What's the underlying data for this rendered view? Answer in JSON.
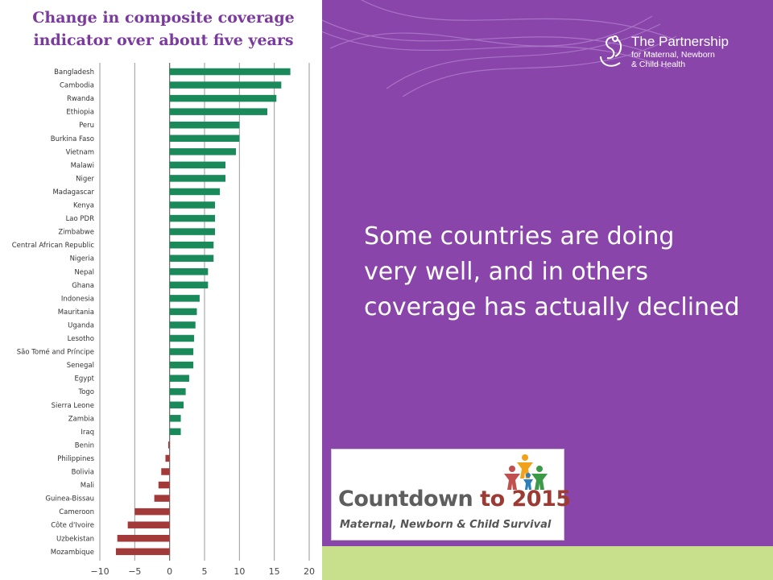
{
  "title": {
    "line1": "Change in composite coverage",
    "line2": "indicator over about five years"
  },
  "colors": {
    "positive": "#1a8a5a",
    "negative": "#a33a3a",
    "panel": "#8a45ab",
    "strip": "#c8df8b",
    "title": "#7b3a9e"
  },
  "body_text": {
    "line1": "Some countries are doing",
    "line2": "very well, and in others",
    "line3": "coverage has actually declined"
  },
  "partnership_logo": {
    "line1": "The Partnership",
    "line2": "for Maternal, Newborn",
    "line3": "& Child Health",
    "icon": "partnership-swirl-icon"
  },
  "countdown_logo": {
    "main_prefix": "Countdown ",
    "main_suffix": "to 2015",
    "subtitle": "Maternal, Newborn & Child Survival",
    "icon": "people-figures-icon"
  },
  "chart_data": {
    "type": "bar",
    "orientation": "horizontal",
    "categories": [
      "Bangladesh",
      "Cambodia",
      "Rwanda",
      "Ethiopia",
      "Peru",
      "Burkina Faso",
      "Vietnam",
      "Malawi",
      "Niger",
      "Madagascar",
      "Kenya",
      "Lao PDR",
      "Zimbabwe",
      "Central African Republic",
      "Nigeria",
      "Nepal",
      "Ghana",
      "Indonesia",
      "Mauritania",
      "Uganda",
      "Lesotho",
      "São Tomé and Príncipe",
      "Senegal",
      "Egypt",
      "Togo",
      "Sierra Leone",
      "Zambia",
      "Iraq",
      "Benin",
      "Philippines",
      "Bolivia",
      "Mali",
      "Guinea-Bissau",
      "Cameroon",
      "Côte d'Ivoire",
      "Uzbekistan",
      "Mozambique"
    ],
    "values": [
      17.3,
      16.0,
      15.3,
      14.0,
      10.0,
      10.0,
      9.5,
      8.0,
      8.0,
      7.2,
      6.5,
      6.5,
      6.5,
      6.3,
      6.3,
      5.5,
      5.5,
      4.3,
      3.9,
      3.7,
      3.5,
      3.4,
      3.4,
      2.8,
      2.3,
      2.0,
      1.6,
      1.6,
      -0.2,
      -0.6,
      -1.2,
      -1.6,
      -2.2,
      -5.0,
      -6.0,
      -7.5,
      -7.7
    ],
    "xlim": [
      -10,
      20
    ],
    "xticks": [
      -10,
      -5,
      0,
      5,
      10,
      15,
      20
    ],
    "xtick_labels": [
      "−10",
      "−5",
      "0",
      "5",
      "10",
      "15",
      "20"
    ],
    "grid": "vertical gridlines at ticks",
    "legend": "none",
    "title": "Change in composite coverage indicator over about five years",
    "xlabel": "",
    "ylabel": ""
  }
}
